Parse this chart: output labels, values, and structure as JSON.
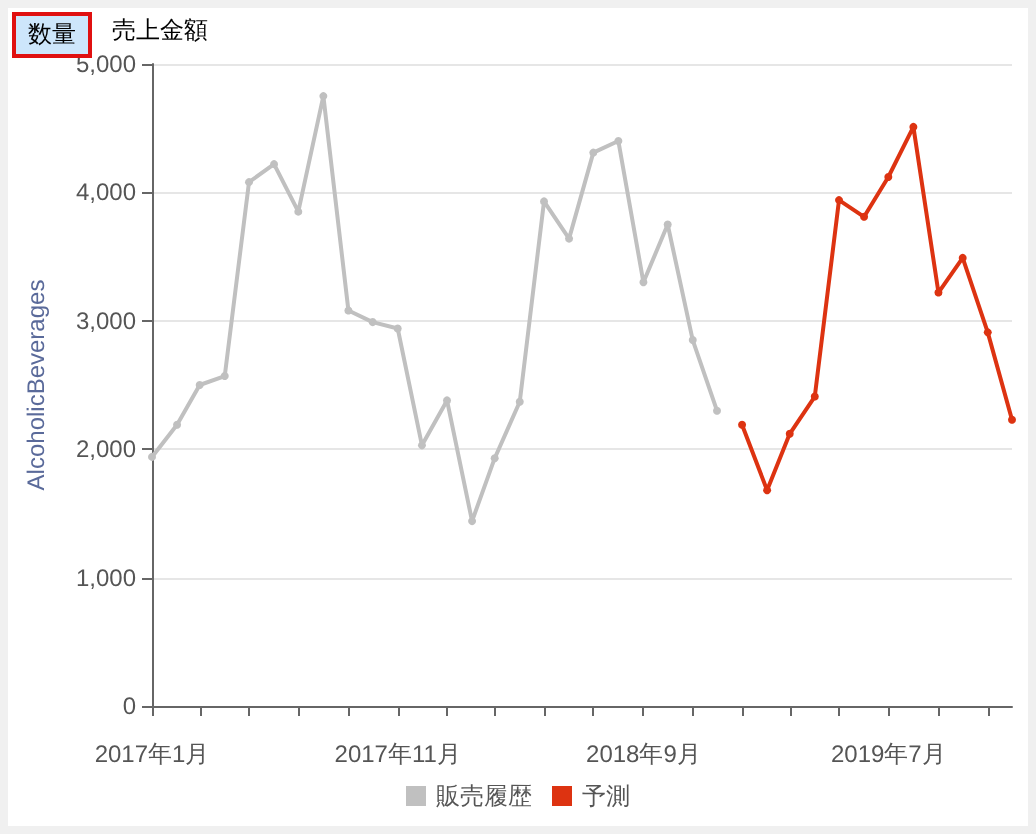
{
  "chart_data": {
    "type": "line",
    "ylabel": "AlcoholicBeverages",
    "annotations": [
      "数量",
      "売上金額"
    ],
    "x": [
      "2017-01",
      "2017-02",
      "2017-03",
      "2017-04",
      "2017-05",
      "2017-06",
      "2017-07",
      "2017-08",
      "2017-09",
      "2017-10",
      "2017-11",
      "2017-12",
      "2018-01",
      "2018-02",
      "2018-03",
      "2018-04",
      "2018-05",
      "2018-06",
      "2018-07",
      "2018-08",
      "2018-09",
      "2018-10",
      "2018-11",
      "2018-12"
    ],
    "series": [
      {
        "name": "販売履歴",
        "color": "#c0c0c0",
        "values": [
          1940,
          2190,
          2500,
          2570,
          4080,
          4220,
          3850,
          4750,
          3080,
          2990,
          2940,
          2030,
          2380,
          1440,
          1930,
          2370,
          3930,
          3640,
          4310,
          4400,
          3300,
          3750,
          2850,
          2300
        ]
      },
      {
        "name": "予測",
        "color": "#dd3311",
        "x": [
          "2019-01",
          "2019-02",
          "2019-03",
          "2019-04",
          "2019-05",
          "2019-06",
          "2019-07",
          "2019-08",
          "2019-09",
          "2019-10",
          "2019-11",
          "2019-12"
        ],
        "values": [
          2190,
          1680,
          2120,
          2410,
          3940,
          3810,
          4120,
          4510,
          3220,
          3490,
          2910,
          2230
        ]
      }
    ],
    "xlim": [
      "2017-01",
      "2019-12"
    ],
    "xticks": [
      {
        "value": "2017-01",
        "label": "2017年1月"
      },
      {
        "value": "2017-03",
        "label": null
      },
      {
        "value": "2017-05",
        "label": null
      },
      {
        "value": "2017-07",
        "label": null
      },
      {
        "value": "2017-09",
        "label": null
      },
      {
        "value": "2017-11",
        "label": "2017年11月"
      },
      {
        "value": "2018-01",
        "label": null
      },
      {
        "value": "2018-03",
        "label": null
      },
      {
        "value": "2018-05",
        "label": null
      },
      {
        "value": "2018-07",
        "label": null
      },
      {
        "value": "2018-09",
        "label": "2018年9月"
      },
      {
        "value": "2018-11",
        "label": null
      },
      {
        "value": "2019-01",
        "label": null
      },
      {
        "value": "2019-03",
        "label": null
      },
      {
        "value": "2019-05",
        "label": null
      },
      {
        "value": "2019-07",
        "label": "2019年7月"
      },
      {
        "value": "2019-09",
        "label": null
      },
      {
        "value": "2019-11",
        "label": null
      }
    ],
    "ylim": [
      0,
      5000
    ],
    "yticks": [
      0,
      {
        "value": 1000,
        "label": "1,000"
      },
      {
        "value": 2000,
        "label": "2,000"
      },
      {
        "value": 3000,
        "label": "3,000"
      },
      {
        "value": 4000,
        "label": "4,000"
      },
      {
        "value": 5000,
        "label": "5,000"
      }
    ],
    "grid": "y",
    "legend": "bottom",
    "marker": "circle",
    "line_style": "solid"
  }
}
